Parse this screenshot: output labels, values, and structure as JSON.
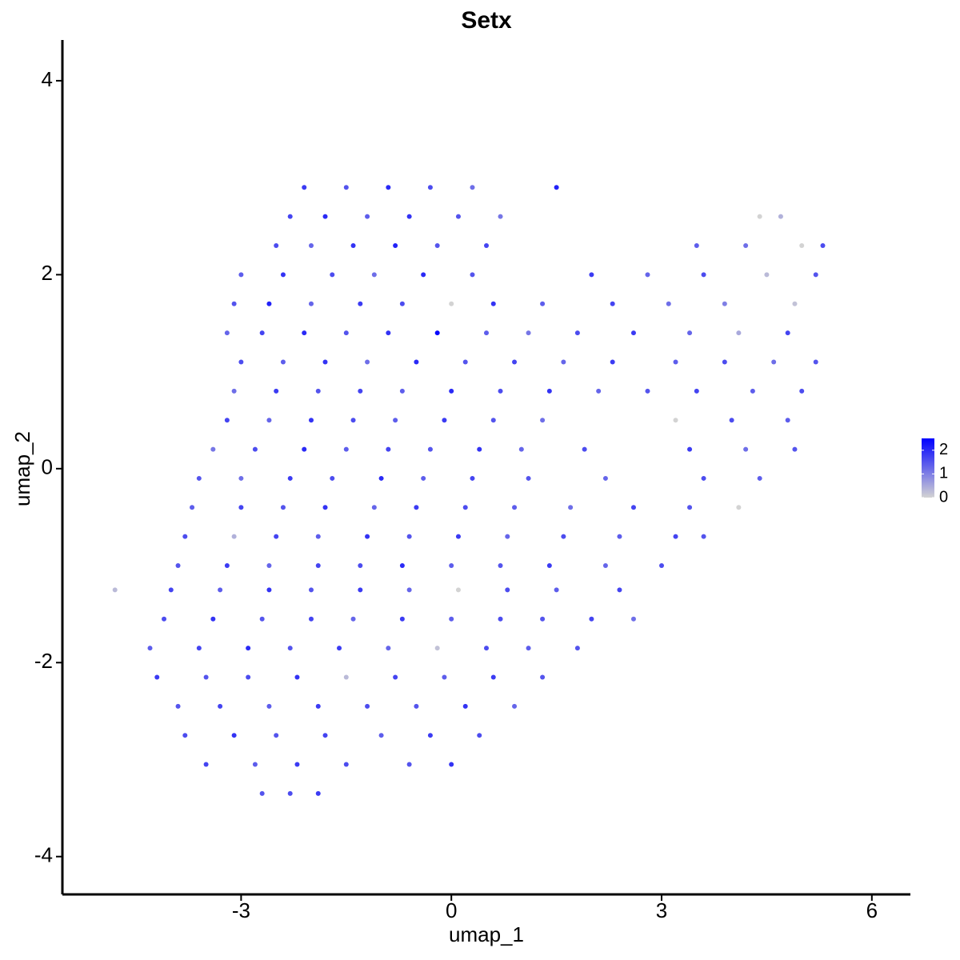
{
  "chart_data": {
    "type": "scatter",
    "title": "Setx",
    "x_label": "umap_1",
    "y_label": "umap_2",
    "xlim": [
      -5.55,
      6.55
    ],
    "xticks": [
      -3,
      0,
      3,
      6
    ],
    "ylim": [
      -4.39,
      4.42
    ],
    "yticks": [
      -4,
      -2,
      0,
      2,
      4
    ],
    "colorbar": {
      "lim": [
        0,
        2.5
      ],
      "ticks": [
        0,
        1,
        2
      ],
      "low": "#d3d3d3",
      "high": "#0000ff"
    },
    "x": [
      -2.1,
      -1.5,
      -0.9,
      -0.3,
      0.3,
      1.5,
      -2.3,
      -1.8,
      -1.2,
      -0.6,
      0.1,
      0.7,
      4.4,
      4.7,
      -2.5,
      -2.0,
      -1.4,
      -0.8,
      -0.2,
      0.5,
      3.5,
      4.2,
      5.0,
      5.3,
      -3.0,
      -2.4,
      -1.7,
      -1.1,
      -0.4,
      0.3,
      2.0,
      2.8,
      3.6,
      4.5,
      5.2,
      -3.1,
      -2.6,
      -2.0,
      -1.3,
      -0.7,
      0.0,
      0.6,
      1.3,
      2.3,
      3.1,
      3.9,
      4.9,
      -3.2,
      -2.7,
      -2.1,
      -1.5,
      -0.9,
      -0.2,
      0.5,
      1.1,
      1.8,
      2.6,
      3.4,
      4.1,
      4.8,
      -3.0,
      -2.4,
      -1.8,
      -1.2,
      -0.5,
      0.2,
      0.9,
      1.6,
      2.3,
      3.2,
      3.9,
      4.6,
      5.2,
      -3.1,
      -2.5,
      -1.9,
      -1.3,
      -0.7,
      0.0,
      0.7,
      1.4,
      2.1,
      2.8,
      3.5,
      4.3,
      5.0,
      -3.2,
      -2.6,
      -2.0,
      -1.4,
      -0.8,
      -0.1,
      0.6,
      1.3,
      3.2,
      4.0,
      4.8,
      -3.4,
      -2.8,
      -2.1,
      -1.5,
      -0.9,
      -0.3,
      0.4,
      1.0,
      1.9,
      3.4,
      4.2,
      4.9,
      -3.6,
      -3.0,
      -2.3,
      -1.7,
      -1.0,
      -0.4,
      0.3,
      1.1,
      2.2,
      3.6,
      4.4,
      -3.7,
      -3.0,
      -2.4,
      -1.8,
      -1.1,
      -0.5,
      0.2,
      0.9,
      1.7,
      2.6,
      3.4,
      4.1,
      -3.8,
      -3.1,
      -2.5,
      -1.9,
      -1.2,
      -0.6,
      0.1,
      0.8,
      1.6,
      2.4,
      3.2,
      3.6,
      -3.9,
      -3.2,
      -2.6,
      -1.9,
      -1.3,
      -0.7,
      0.0,
      0.7,
      1.4,
      2.2,
      3.0,
      -4.8,
      -4.0,
      -3.3,
      -2.6,
      -2.0,
      -1.3,
      -0.6,
      0.1,
      0.8,
      1.5,
      2.4,
      -4.1,
      -3.4,
      -2.7,
      -2.0,
      -1.4,
      -0.7,
      0.0,
      0.7,
      1.3,
      2.0,
      2.6,
      -4.3,
      -3.6,
      -2.9,
      -2.3,
      -1.6,
      -0.9,
      -0.2,
      0.5,
      1.1,
      1.8,
      -4.2,
      -3.5,
      -2.9,
      -2.2,
      -1.5,
      -0.8,
      -0.1,
      0.6,
      1.3,
      -3.9,
      -3.3,
      -2.6,
      -1.9,
      -1.2,
      -0.5,
      0.2,
      0.9,
      -3.8,
      -3.1,
      -2.5,
      -1.8,
      -1.0,
      -0.3,
      0.4,
      -3.5,
      -2.8,
      -2.2,
      -1.5,
      -0.6,
      0.0,
      -2.7,
      -2.3,
      -1.9
    ],
    "y": [
      2.9,
      2.9,
      2.9,
      2.9,
      2.9,
      2.9,
      2.6,
      2.6,
      2.6,
      2.6,
      2.6,
      2.6,
      2.6,
      2.6,
      2.3,
      2.3,
      2.3,
      2.3,
      2.3,
      2.3,
      2.3,
      2.3,
      2.3,
      2.3,
      2.0,
      2.0,
      2.0,
      2.0,
      2.0,
      2.0,
      2.0,
      2.0,
      2.0,
      2.0,
      2.0,
      1.7,
      1.7,
      1.7,
      1.7,
      1.7,
      1.7,
      1.7,
      1.7,
      1.7,
      1.7,
      1.7,
      1.7,
      1.4,
      1.4,
      1.4,
      1.4,
      1.4,
      1.4,
      1.4,
      1.4,
      1.4,
      1.4,
      1.4,
      1.4,
      1.4,
      1.1,
      1.1,
      1.1,
      1.1,
      1.1,
      1.1,
      1.1,
      1.1,
      1.1,
      1.1,
      1.1,
      1.1,
      1.1,
      0.8,
      0.8,
      0.8,
      0.8,
      0.8,
      0.8,
      0.8,
      0.8,
      0.8,
      0.8,
      0.8,
      0.8,
      0.8,
      0.5,
      0.5,
      0.5,
      0.5,
      0.5,
      0.5,
      0.5,
      0.5,
      0.5,
      0.5,
      0.5,
      0.2,
      0.2,
      0.2,
      0.2,
      0.2,
      0.2,
      0.2,
      0.2,
      0.2,
      0.2,
      0.2,
      0.2,
      -0.1,
      -0.1,
      -0.1,
      -0.1,
      -0.1,
      -0.1,
      -0.1,
      -0.1,
      -0.1,
      -0.1,
      -0.1,
      -0.4,
      -0.4,
      -0.4,
      -0.4,
      -0.4,
      -0.4,
      -0.4,
      -0.4,
      -0.4,
      -0.4,
      -0.4,
      -0.4,
      -0.7,
      -0.7,
      -0.7,
      -0.7,
      -0.7,
      -0.7,
      -0.7,
      -0.7,
      -0.7,
      -0.7,
      -0.7,
      -0.7,
      -1.0,
      -1.0,
      -1.0,
      -1.0,
      -1.0,
      -1.0,
      -1.0,
      -1.0,
      -1.0,
      -1.0,
      -1.0,
      -1.25,
      -1.25,
      -1.25,
      -1.25,
      -1.25,
      -1.25,
      -1.25,
      -1.25,
      -1.25,
      -1.25,
      -1.25,
      -1.55,
      -1.55,
      -1.55,
      -1.55,
      -1.55,
      -1.55,
      -1.55,
      -1.55,
      -1.55,
      -1.55,
      -1.55,
      -1.85,
      -1.85,
      -1.85,
      -1.85,
      -1.85,
      -1.85,
      -1.85,
      -1.85,
      -1.85,
      -1.85,
      -2.15,
      -2.15,
      -2.15,
      -2.15,
      -2.15,
      -2.15,
      -2.15,
      -2.15,
      -2.15,
      -2.45,
      -2.45,
      -2.45,
      -2.45,
      -2.45,
      -2.45,
      -2.45,
      -2.45,
      -2.75,
      -2.75,
      -2.75,
      -2.75,
      -2.75,
      -2.75,
      -2.75,
      -3.05,
      -3.05,
      -3.05,
      -3.05,
      -3.05,
      -3.05,
      -3.35,
      -3.35,
      -3.35
    ],
    "values": [
      1.8,
      1.5,
      2.0,
      1.6,
      1.2,
      2.1,
      1.7,
      2.0,
      1.4,
      1.9,
      1.5,
      1.1,
      0,
      0.4,
      1.6,
      1.3,
      1.9,
      2.1,
      1.5,
      1.7,
      1.4,
      1.2,
      0,
      1.6,
      1.4,
      1.9,
      1.6,
      1.2,
      2.0,
      1.5,
      1.8,
      1.3,
      1.6,
      0.3,
      1.5,
      1.5,
      2.1,
      1.3,
      1.8,
      1.6,
      0,
      1.9,
      1.4,
      1.7,
      1.2,
      1.0,
      0.2,
      1.3,
      1.7,
      2.0,
      1.5,
      1.9,
      2.4,
      1.4,
      1.1,
      1.6,
      1.8,
      1.3,
      0.5,
      1.7,
      1.6,
      1.4,
      1.9,
      1.2,
      2.0,
      1.5,
      1.7,
      1.3,
      1.8,
      1.4,
      1.6,
      1.2,
      1.5,
      1.2,
      1.8,
      1.5,
      1.7,
      1.4,
      2.0,
      1.6,
      1.9,
      1.3,
      1.5,
      1.7,
      1.4,
      1.6,
      1.7,
      1.3,
      1.9,
      1.6,
      1.4,
      1.8,
      1.5,
      1.2,
      0,
      1.6,
      1.4,
      1.1,
      1.6,
      2.0,
      1.4,
      1.7,
      1.5,
      1.9,
      1.3,
      1.6,
      1.8,
      1.2,
      1.5,
      1.5,
      1.2,
      1.8,
      1.6,
      2.0,
      1.4,
      1.7,
      1.5,
      1.3,
      1.6,
      1.4,
      1.4,
      1.7,
      1.5,
      1.9,
      1.3,
      1.8,
      1.6,
      1.4,
      1.2,
      1.7,
      1.5,
      0,
      1.6,
      0.4,
      1.7,
      1.4,
      1.9,
      1.5,
      1.8,
      1.3,
      1.6,
      1.4,
      1.7,
      1.5,
      1.5,
      1.8,
      1.3,
      1.7,
      1.6,
      2.0,
      1.4,
      1.5,
      1.8,
      1.3,
      1.6,
      0.3,
      1.7,
      1.4,
      1.9,
      1.5,
      1.8,
      1.3,
      0,
      1.6,
      1.4,
      1.7,
      1.6,
      1.9,
      1.5,
      1.7,
      1.3,
      1.8,
      1.4,
      1.6,
      1.5,
      1.7,
      1.2,
      1.4,
      1.7,
      2.0,
      1.5,
      1.8,
      1.3,
      0.2,
      1.6,
      1.4,
      1.5,
      1.8,
      1.5,
      1.6,
      1.9,
      0.3,
      1.7,
      1.4,
      1.8,
      1.5,
      1.5,
      1.7,
      1.4,
      1.8,
      1.6,
      1.5,
      1.9,
      1.3,
      1.6,
      1.9,
      1.5,
      1.7,
      1.4,
      1.8,
      1.6,
      1.7,
      1.4,
      1.8,
      1.6,
      1.5,
      1.9,
      1.5,
      1.6,
      1.8
    ]
  }
}
